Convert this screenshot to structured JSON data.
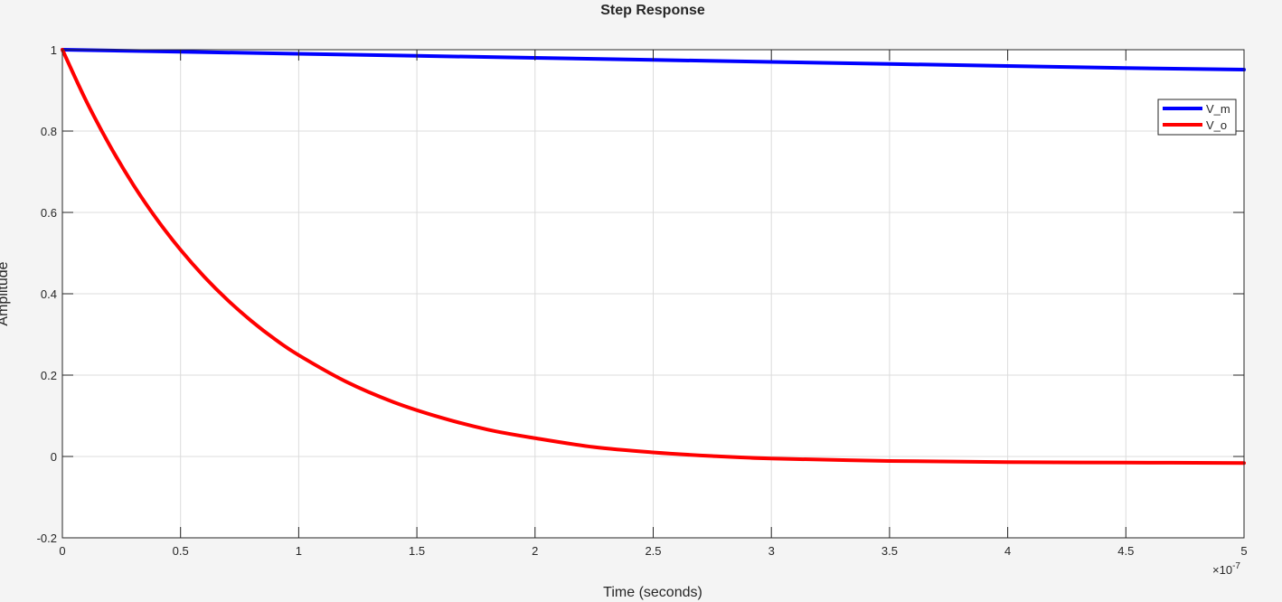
{
  "chart_data": {
    "type": "line",
    "title": "Step Response",
    "xlabel": "Time (seconds)",
    "ylabel": "Amplitude",
    "x_exponent_label": "×10",
    "x_exponent_power": "-7",
    "xlim": [
      0,
      5e-07
    ],
    "ylim": [
      -0.2,
      1
    ],
    "x_ticks": [
      0,
      5e-08,
      1e-07,
      1.5e-07,
      2e-07,
      2.5e-07,
      3e-07,
      3.5e-07,
      4e-07,
      4.5e-07,
      5e-07
    ],
    "x_tick_labels": [
      "0",
      "0.5",
      "1",
      "1.5",
      "2",
      "2.5",
      "3",
      "3.5",
      "4",
      "4.5",
      "5"
    ],
    "y_ticks": [
      -0.2,
      0,
      0.2,
      0.4,
      0.6,
      0.8,
      1
    ],
    "y_tick_labels": [
      "-0.2",
      "0",
      "0.2",
      "0.4",
      "0.6",
      "0.8",
      "1"
    ],
    "grid": true,
    "legend_position": "top-right",
    "series": [
      {
        "name": "V_m",
        "color": "#0000ff",
        "x": [
          0,
          5e-08,
          1e-07,
          1.5e-07,
          2e-07,
          2.5e-07,
          3e-07,
          3.5e-07,
          4e-07,
          4.5e-07,
          5e-07
        ],
        "y": [
          1.0,
          0.995,
          0.99,
          0.985,
          0.98,
          0.975,
          0.97,
          0.965,
          0.96,
          0.955,
          0.951
        ]
      },
      {
        "name": "V_o",
        "color": "#ff0000",
        "x": [
          0,
          1e-08,
          2e-08,
          3e-08,
          4e-08,
          5e-08,
          6e-08,
          7e-08,
          8e-08,
          9e-08,
          1e-07,
          1.2e-07,
          1.4e-07,
          1.6e-07,
          1.8e-07,
          2e-07,
          2.25e-07,
          2.5e-07,
          2.75e-07,
          3e-07,
          3.5e-07,
          4e-07,
          4.5e-07,
          5e-07
        ],
        "y": [
          1.0,
          0.875,
          0.765,
          0.668,
          0.583,
          0.508,
          0.442,
          0.384,
          0.333,
          0.288,
          0.249,
          0.184,
          0.134,
          0.096,
          0.066,
          0.045,
          0.023,
          0.01,
          0.001,
          -0.005,
          -0.011,
          -0.014,
          -0.015,
          -0.016
        ]
      }
    ]
  }
}
